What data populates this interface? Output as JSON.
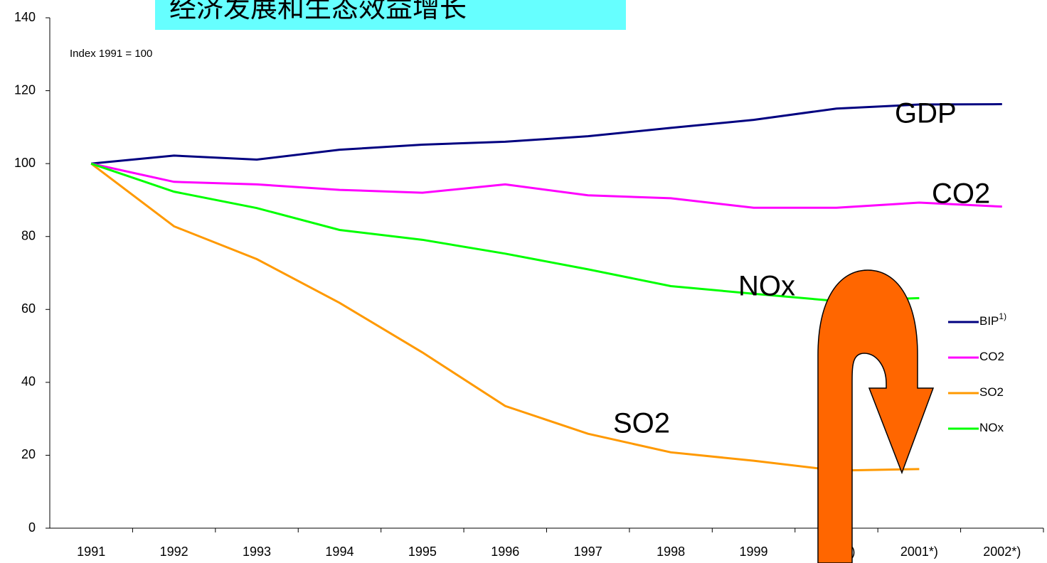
{
  "chart_data": {
    "type": "line",
    "title": "经济发展和生态效益增长",
    "subtitle": "Index 1991 = 100",
    "categories": [
      "1991",
      "1992",
      "1993",
      "1994",
      "1995",
      "1996",
      "1997",
      "1998",
      "1999",
      "2000*)",
      "2001*)",
      "2002*)"
    ],
    "series": [
      {
        "name": "BIP",
        "name_superscript": "1)",
        "color": "#000080",
        "values": [
          100,
          102.2,
          101.1,
          103.8,
          105.2,
          106,
          107.5,
          109.8,
          112,
          115.1,
          116.2,
          116.3
        ]
      },
      {
        "name": "CO2",
        "color": "#ff00ff",
        "values": [
          100,
          95,
          94.3,
          92.8,
          92,
          94.3,
          91.3,
          90.5,
          87.9,
          87.9,
          89.3,
          88.2
        ]
      },
      {
        "name": "SO2",
        "color": "#ff9900",
        "values": [
          100,
          82.8,
          73.8,
          61.8,
          48.2,
          33.5,
          25.9,
          20.8,
          18.5,
          15.8,
          16.2,
          null
        ]
      },
      {
        "name": "NOx",
        "color": "#00ff00",
        "values": [
          100,
          92.3,
          87.8,
          81.8,
          79.1,
          75.3,
          71,
          66.4,
          64.3,
          62.3,
          63.1,
          null
        ]
      }
    ],
    "annotations": [
      "GDP",
      "CO2",
      "NOx",
      "SO2"
    ],
    "ylim": [
      0,
      140
    ],
    "yticks": [
      0,
      20,
      40,
      60,
      80,
      100,
      120,
      140
    ],
    "legend": "right"
  }
}
